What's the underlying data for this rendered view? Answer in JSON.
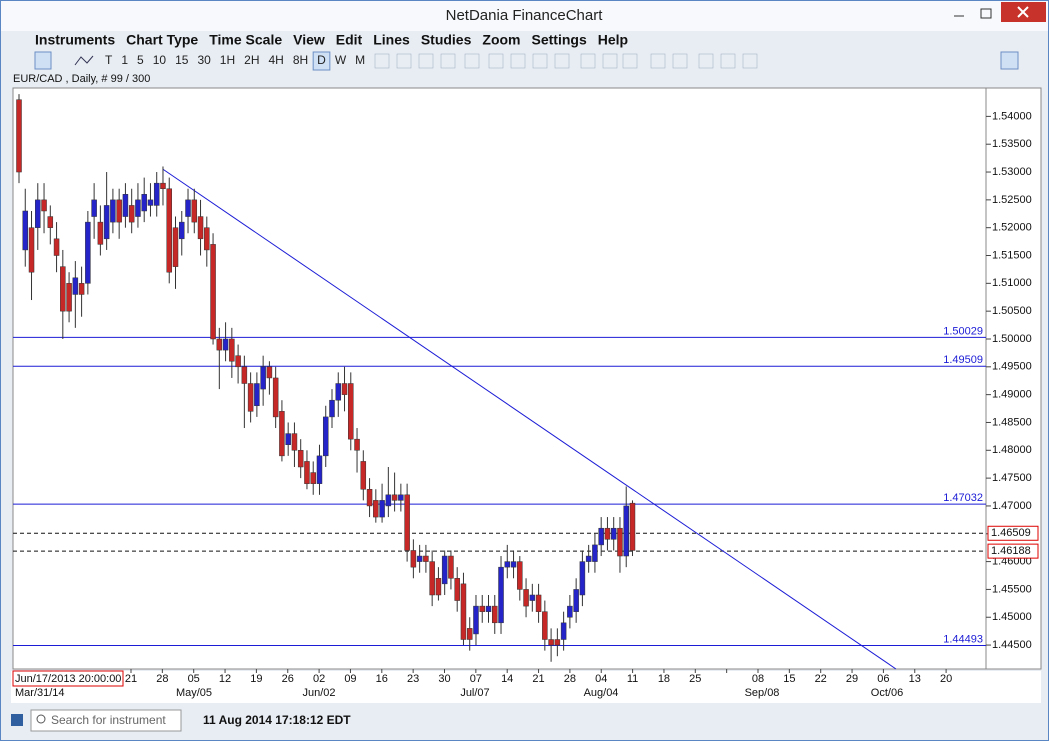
{
  "ui": {
    "window_title": "NetDania FinanceChart",
    "menu": [
      "Instruments",
      "Chart Type",
      "Time Scale",
      "View",
      "Edit",
      "Lines",
      "Studies",
      "Zoom",
      "Settings",
      "Help"
    ],
    "intervals": [
      "T",
      "1",
      "5",
      "10",
      "15",
      "30",
      "1H",
      "2H",
      "4H",
      "8H",
      "D",
      "W",
      "M"
    ],
    "selected_interval": "D",
    "instrument_info": "EUR/CAD , Daily, # 99 / 300",
    "cursor_time": "Jun/17/2013 20:00:00",
    "search_placeholder": "Search for instrument",
    "status_time": "11 Aug 2014 17:18:12 EDT"
  },
  "chart_data": {
    "type": "candlestick",
    "up_color": "#2424c8",
    "down_color": "#c62828",
    "ylim": [
      1.4407,
      1.5451
    ],
    "yticks": [
      {
        "value": 1.445,
        "label": "1.44500"
      },
      {
        "value": 1.45,
        "label": "1.45000"
      },
      {
        "value": 1.455,
        "label": "1.45500"
      },
      {
        "value": 1.46,
        "label": "1.46000"
      },
      {
        "value": 1.465,
        "label": "1.46500"
      },
      {
        "value": 1.47,
        "label": "1.47000"
      },
      {
        "value": 1.475,
        "label": "1.47500"
      },
      {
        "value": 1.48,
        "label": "1.48000"
      },
      {
        "value": 1.485,
        "label": "1.48500"
      },
      {
        "value": 1.49,
        "label": "1.49000"
      },
      {
        "value": 1.495,
        "label": "1.49500"
      },
      {
        "value": 1.5,
        "label": "1.50000"
      },
      {
        "value": 1.505,
        "label": "1.50500"
      },
      {
        "value": 1.51,
        "label": "1.51000"
      },
      {
        "value": 1.515,
        "label": "1.51500"
      },
      {
        "value": 1.52,
        "label": "1.52000"
      },
      {
        "value": 1.525,
        "label": "1.52500"
      },
      {
        "value": 1.53,
        "label": "1.53000"
      },
      {
        "value": 1.535,
        "label": "1.53500"
      },
      {
        "value": 1.54,
        "label": "1.54000"
      }
    ],
    "x_day_labels": [
      "21",
      "28",
      "05",
      "12",
      "19",
      "26",
      "02",
      "09",
      "16",
      "23",
      "30",
      "07",
      "14",
      "21",
      "28",
      "04",
      "11",
      "18",
      "25",
      null,
      "08",
      "15",
      "22",
      "29",
      "06",
      "13",
      "20"
    ],
    "x_month_labels": [
      "Mar/31/14",
      "May/05",
      "Jun/02",
      "Jul/07",
      "Aug/04",
      "Sep/08",
      "Oct/06"
    ],
    "open": [
      1.543,
      1.516,
      1.52,
      1.52,
      1.525,
      1.522,
      1.518,
      1.513,
      1.51,
      1.508,
      1.51,
      1.51,
      1.522,
      1.521,
      1.518,
      1.521,
      1.525,
      1.522,
      1.524,
      1.522,
      1.523,
      1.524,
      1.524,
      1.528,
      1.527,
      1.52,
      1.518,
      1.522,
      1.525,
      1.522,
      1.52,
      1.517,
      1.5,
      1.498,
      1.5,
      1.497,
      1.495,
      1.492,
      1.488,
      1.491,
      1.495,
      1.493,
      1.487,
      1.481,
      1.483,
      1.48,
      1.478,
      1.476,
      1.474,
      1.479,
      1.486,
      1.489,
      1.492,
      1.492,
      1.482,
      1.478,
      1.473,
      1.471,
      1.468,
      1.47,
      1.472,
      1.471,
      1.472,
      1.462,
      1.46,
      1.461,
      1.46,
      1.457,
      1.456,
      1.461,
      1.457,
      1.456,
      1.448,
      1.447,
      1.452,
      1.451,
      1.452,
      1.449,
      1.459,
      1.459,
      1.46,
      1.455,
      1.453,
      1.454,
      1.451,
      1.446,
      1.446,
      1.446,
      1.45,
      1.451,
      1.454,
      1.46,
      1.46,
      1.463,
      1.466,
      1.464,
      1.466,
      1.461,
      1.4705
    ],
    "high": [
      1.544,
      1.527,
      1.523,
      1.528,
      1.528,
      1.524,
      1.521,
      1.516,
      1.512,
      1.514,
      1.513,
      1.523,
      1.528,
      1.524,
      1.53,
      1.527,
      1.527,
      1.528,
      1.527,
      1.528,
      1.529,
      1.528,
      1.53,
      1.531,
      1.529,
      1.522,
      1.523,
      1.527,
      1.527,
      1.525,
      1.522,
      1.519,
      1.502,
      1.503,
      1.502,
      1.499,
      1.497,
      1.494,
      1.494,
      1.497,
      1.496,
      1.495,
      1.489,
      1.485,
      1.485,
      1.482,
      1.48,
      1.478,
      1.481,
      1.488,
      1.491,
      1.494,
      1.495,
      1.494,
      1.484,
      1.48,
      1.475,
      1.473,
      1.474,
      1.477,
      1.476,
      1.474,
      1.474,
      1.464,
      1.463,
      1.463,
      1.462,
      1.459,
      1.462,
      1.462,
      1.459,
      1.458,
      1.45,
      1.454,
      1.454,
      1.454,
      1.454,
      1.461,
      1.463,
      1.462,
      1.461,
      1.457,
      1.456,
      1.456,
      1.453,
      1.448,
      1.448,
      1.451,
      1.454,
      1.457,
      1.462,
      1.463,
      1.465,
      1.468,
      1.468,
      1.468,
      1.468,
      1.4735,
      1.471
    ],
    "low": [
      1.528,
      1.513,
      1.507,
      1.516,
      1.519,
      1.517,
      1.512,
      1.5,
      1.503,
      1.502,
      1.504,
      1.508,
      1.518,
      1.515,
      1.516,
      1.519,
      1.518,
      1.52,
      1.519,
      1.52,
      1.521,
      1.522,
      1.522,
      1.524,
      1.51,
      1.509,
      1.515,
      1.519,
      1.519,
      1.515,
      1.513,
      1.499,
      1.491,
      1.496,
      1.493,
      1.492,
      1.484,
      1.485,
      1.486,
      1.488,
      1.49,
      1.484,
      1.478,
      1.479,
      1.477,
      1.475,
      1.473,
      1.472,
      1.472,
      1.477,
      1.484,
      1.486,
      1.487,
      1.48,
      1.476,
      1.471,
      1.468,
      1.467,
      1.467,
      1.468,
      1.469,
      1.469,
      1.46,
      1.457,
      1.458,
      1.458,
      1.452,
      1.453,
      1.454,
      1.455,
      1.451,
      1.445,
      1.444,
      1.445,
      1.449,
      1.449,
      1.447,
      1.447,
      1.457,
      1.457,
      1.453,
      1.45,
      1.451,
      1.449,
      1.444,
      1.442,
      1.443,
      1.444,
      1.448,
      1.449,
      1.452,
      1.458,
      1.458,
      1.461,
      1.462,
      1.462,
      1.458,
      1.459,
      1.461
    ],
    "close": [
      1.53,
      1.523,
      1.512,
      1.525,
      1.523,
      1.52,
      1.515,
      1.505,
      1.505,
      1.511,
      1.508,
      1.521,
      1.525,
      1.517,
      1.524,
      1.525,
      1.521,
      1.526,
      1.521,
      1.525,
      1.526,
      1.525,
      1.528,
      1.527,
      1.512,
      1.513,
      1.521,
      1.525,
      1.521,
      1.518,
      1.516,
      1.5,
      1.498,
      1.5,
      1.496,
      1.495,
      1.492,
      1.487,
      1.492,
      1.495,
      1.493,
      1.486,
      1.479,
      1.483,
      1.48,
      1.477,
      1.474,
      1.474,
      1.479,
      1.486,
      1.489,
      1.492,
      1.49,
      1.482,
      1.48,
      1.473,
      1.47,
      1.468,
      1.471,
      1.472,
      1.471,
      1.472,
      1.462,
      1.459,
      1.461,
      1.46,
      1.454,
      1.454,
      1.461,
      1.457,
      1.453,
      1.446,
      1.446,
      1.452,
      1.451,
      1.452,
      1.449,
      1.459,
      1.46,
      1.46,
      1.455,
      1.452,
      1.454,
      1.451,
      1.446,
      1.445,
      1.445,
      1.449,
      1.452,
      1.455,
      1.46,
      1.461,
      1.463,
      1.466,
      1.464,
      1.466,
      1.461,
      1.47,
      1.462
    ],
    "levels": [
      1.50029,
      1.49509,
      1.47032,
      1.44493
    ],
    "level_color": "#1c1cd6",
    "price_lines": [
      1.46509,
      1.46188
    ],
    "trendline": [
      1.5305,
      1.4407
    ]
  }
}
